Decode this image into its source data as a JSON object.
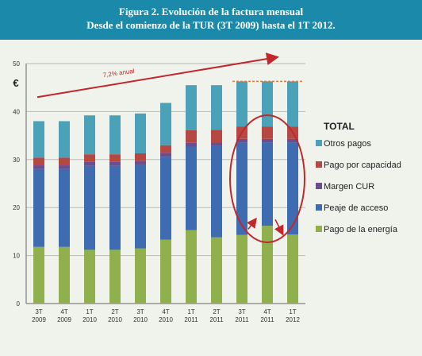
{
  "header": {
    "title_line1": "Figura 2. Evolución de la factura mensual",
    "title_line2": "Desde el comienzo de la TUR (3T 2009) hasta el 1T 2012."
  },
  "chart_data": {
    "type": "bar",
    "stacked": true,
    "ylabel": "€",
    "ylim": [
      0,
      50
    ],
    "yticks": [
      0,
      10,
      20,
      30,
      40,
      50
    ],
    "grid": true,
    "categories": [
      [
        "3T",
        "2009"
      ],
      [
        "4T",
        "2009"
      ],
      [
        "1T",
        "2010"
      ],
      [
        "2T",
        "2010"
      ],
      [
        "3T",
        "2010"
      ],
      [
        "4T",
        "2010"
      ],
      [
        "1T",
        "2011"
      ],
      [
        "2T",
        "2011"
      ],
      [
        "3T",
        "2011"
      ],
      [
        "4T",
        "2011"
      ],
      [
        "1T",
        "2012"
      ]
    ],
    "series": [
      {
        "name": "Pago de la energía",
        "color": "#8fb04c",
        "values": [
          11.8,
          11.8,
          11.2,
          11.2,
          11.5,
          13.3,
          15.3,
          13.8,
          14.3,
          16.2,
          14.4
        ]
      },
      {
        "name": "Peaje de acceso",
        "color": "#3f6bb0",
        "values": [
          16.2,
          16.2,
          17.5,
          17.5,
          17.4,
          17.3,
          17.4,
          19.0,
          19.2,
          17.3,
          19.1
        ]
      },
      {
        "name": "Margen CUR",
        "color": "#6b4e8e",
        "values": [
          0.8,
          0.8,
          0.8,
          0.8,
          0.8,
          0.8,
          0.8,
          0.8,
          0.8,
          0.8,
          0.8
        ]
      },
      {
        "name": "Pago por capacidad",
        "color": "#b64843",
        "values": [
          1.6,
          1.6,
          1.6,
          1.6,
          1.6,
          1.6,
          2.6,
          2.6,
          2.6,
          2.6,
          2.6
        ]
      },
      {
        "name": "Otros pagos",
        "color": "#4aa1b8",
        "values": [
          7.6,
          7.6,
          8.1,
          8.1,
          8.3,
          8.8,
          9.4,
          9.3,
          9.4,
          9.4,
          9.4
        ]
      }
    ],
    "legend": {
      "title": "TOTAL",
      "position": "right",
      "order": [
        "Otros pagos",
        "Pago por capacidad",
        "Margen CUR",
        "Peaje de acceso",
        "Pago de la energía"
      ]
    },
    "annotations": {
      "trend_label": "7,2% anual",
      "trend_color": "#c0282b",
      "reference_level": 46.3,
      "reference_color": "#e07a3a",
      "highlight_color": "#c0282b"
    }
  }
}
